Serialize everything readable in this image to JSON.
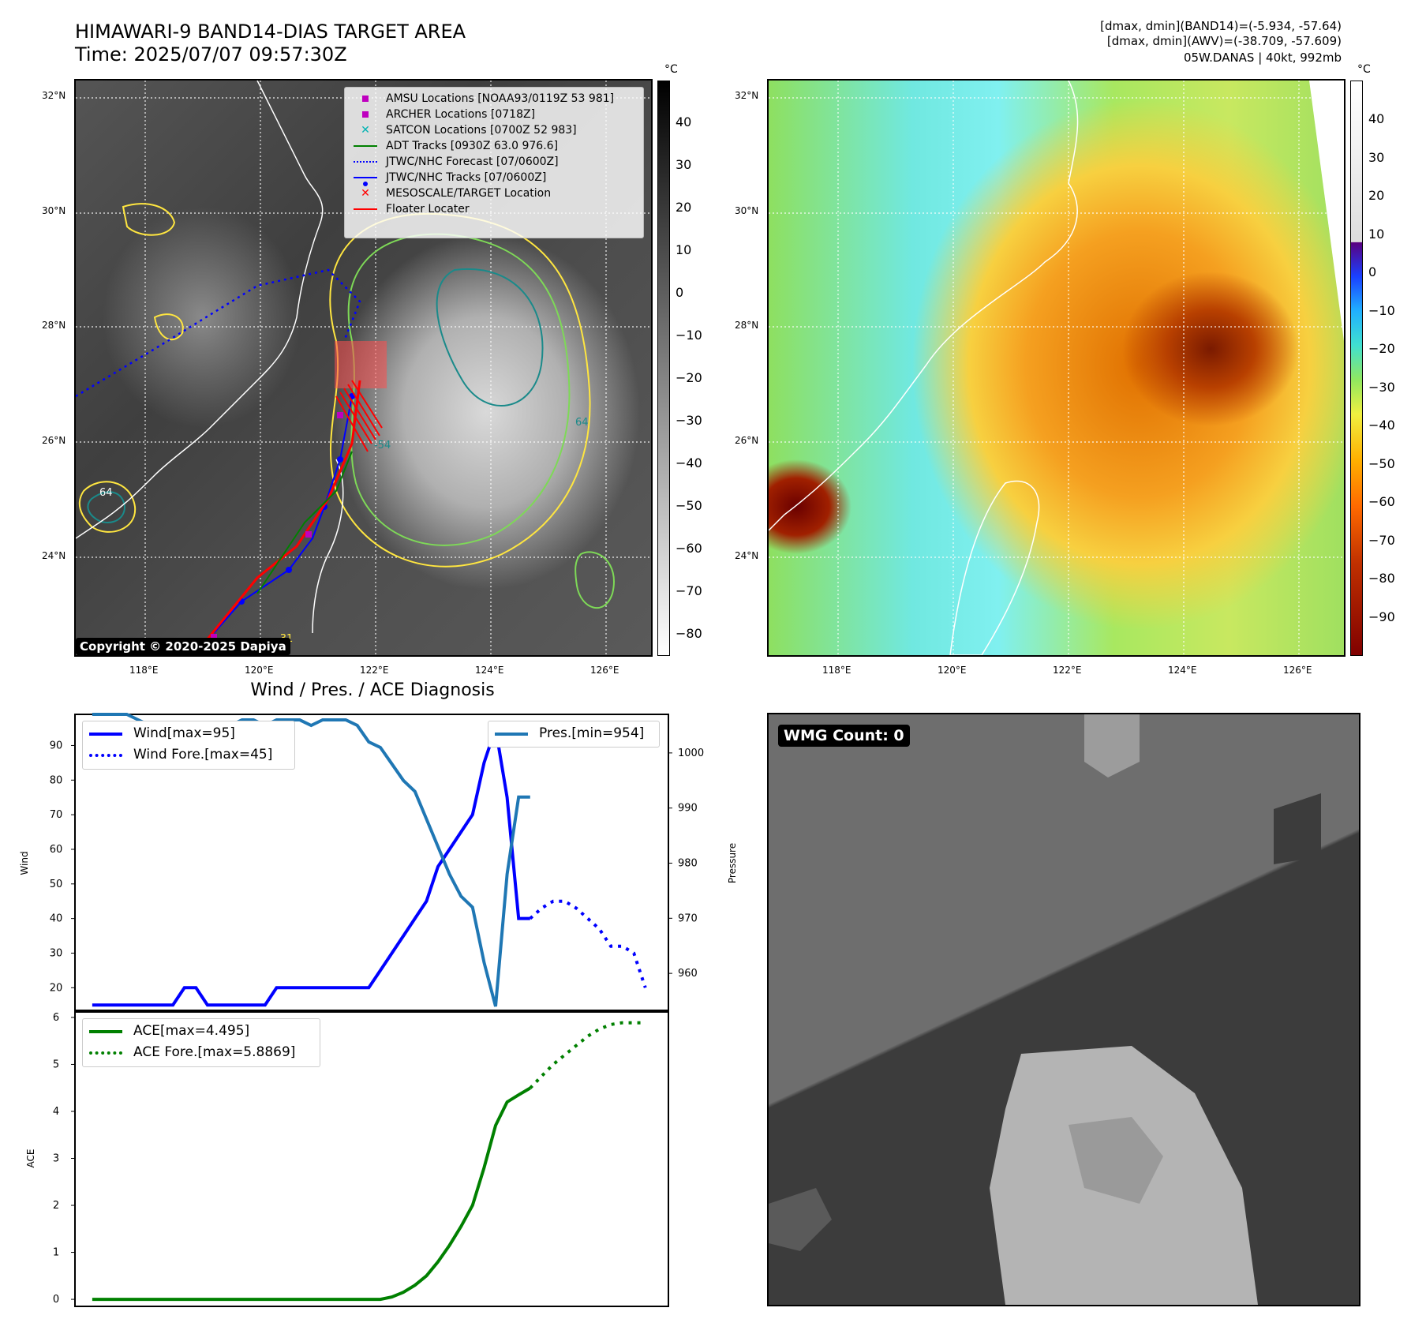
{
  "header": {
    "title_line1": "HIMAWARI-9 BAND14-DIAS TARGET AREA",
    "title_line2": "Time: 2025/07/07 09:57:30Z",
    "info_line1": "[dmax, dmin](BAND14)=(-5.934, -57.64)",
    "info_line2": "[dmax, dmin](AWV)=(-38.709, -57.609)",
    "info_line3": "05W.DANAS | 40kt, 992mb"
  },
  "maps": {
    "lat_labels": [
      "32°N",
      "30°N",
      "28°N",
      "26°N",
      "24°N"
    ],
    "lon_labels": [
      "118°E",
      "120°E",
      "122°E",
      "124°E",
      "126°E"
    ],
    "contour_labels": [
      "-31",
      "64",
      "-54",
      "64"
    ],
    "ir_colorbar": {
      "unit": "°C",
      "ticks": [
        "40",
        "30",
        "20",
        "10",
        "0",
        "−10",
        "−20",
        "−30",
        "−40",
        "−50",
        "−60",
        "−70",
        "−80"
      ]
    },
    "awv_colorbar": {
      "unit": "°C",
      "ticks": [
        "40",
        "30",
        "20",
        "10",
        "0",
        "−10",
        "−20",
        "−30",
        "−40",
        "−50",
        "−60",
        "−70",
        "−80",
        "−90"
      ]
    },
    "legend": [
      {
        "label": "AMSU Locations [NOAA93/0119Z 53 981]",
        "symbol": "square",
        "color": "#bf00bf"
      },
      {
        "label": "ARCHER Locations [0718Z]",
        "symbol": "square",
        "color": "#bf00bf"
      },
      {
        "label": "SATCON Locations [0700Z 52 983]",
        "symbol": "x",
        "color": "#00b3b3"
      },
      {
        "label": "ADT Tracks [0930Z 63.0 976.6]",
        "symbol": "line",
        "color": "#008000"
      },
      {
        "label": "JTWC/NHC Forecast [07/0600Z]",
        "symbol": "dotted",
        "color": "#0000ff"
      },
      {
        "label": "JTWC/NHC Tracks [07/0600Z]",
        "symbol": "line-dot",
        "color": "#0000ff"
      },
      {
        "label": "MESOSCALE/TARGET Location",
        "symbol": "x",
        "color": "#ff0000"
      },
      {
        "label": "Floater Locater",
        "symbol": "line",
        "color": "#ff0000"
      }
    ],
    "copyright": "Copyright © 2020-2025 Dapiya"
  },
  "wmg": {
    "label": "WMG Count: 0"
  },
  "chart_data": [
    {
      "type": "line",
      "title": "Wind / Pres. / ACE Diagnosis",
      "ylabel": "Wind",
      "ylabel_right": "Pressure",
      "ylim": [
        13,
        99
      ],
      "ylim_right": [
        953,
        1007
      ],
      "yticks": [
        "90",
        "80",
        "70",
        "60",
        "50",
        "40",
        "30",
        "20"
      ],
      "yticks_right": [
        "1000",
        "990",
        "980",
        "970",
        "960"
      ],
      "legend_left": [
        "Wind[max=95]",
        "Wind Fore.[max=45]"
      ],
      "legend_right": [
        "Pres.[min=954]"
      ],
      "series": [
        {
          "name": "Wind[max=95]",
          "axis": "left",
          "style": "solid",
          "color": "#0000ff",
          "x": [
            0,
            1,
            2,
            3,
            4,
            5,
            6,
            7,
            8,
            9,
            10,
            11,
            12,
            13,
            14,
            15,
            16,
            17,
            18,
            19,
            20,
            21,
            22,
            23,
            24,
            25,
            26,
            27,
            28,
            29,
            30,
            31,
            32,
            33,
            34,
            35,
            36,
            37,
            38
          ],
          "y": [
            15,
            15,
            15,
            15,
            15,
            15,
            15,
            15,
            20,
            20,
            15,
            15,
            15,
            15,
            15,
            15,
            20,
            20,
            20,
            20,
            20,
            20,
            20,
            20,
            20,
            25,
            30,
            35,
            40,
            45,
            55,
            60,
            65,
            70,
            85,
            95,
            75,
            40,
            40
          ]
        },
        {
          "name": "Wind Fore.[max=45]",
          "axis": "left",
          "style": "dotted",
          "color": "#0000ff",
          "x": [
            38,
            39,
            40,
            41,
            42,
            43,
            44,
            45,
            46,
            47,
            48
          ],
          "y": [
            40,
            43,
            45,
            45,
            43,
            40,
            37,
            32,
            32,
            30,
            20
          ]
        },
        {
          "name": "Pres.[min=954]",
          "axis": "right",
          "style": "solid",
          "color": "#1f77b4",
          "x": [
            0,
            1,
            2,
            3,
            4,
            5,
            6,
            7,
            8,
            9,
            10,
            11,
            12,
            13,
            14,
            15,
            16,
            17,
            18,
            19,
            20,
            21,
            22,
            23,
            24,
            25,
            26,
            27,
            28,
            29,
            30,
            31,
            32,
            33,
            34,
            35,
            36,
            37,
            38
          ],
          "y": [
            1007,
            1007,
            1007,
            1007,
            1006,
            1005,
            1005,
            1005,
            1005,
            1005,
            1005,
            1005,
            1005,
            1006,
            1006,
            1005,
            1006,
            1006,
            1006,
            1005,
            1006,
            1006,
            1006,
            1005,
            1002,
            1001,
            998,
            995,
            993,
            988,
            983,
            978,
            974,
            972,
            962,
            954,
            978,
            992,
            992
          ]
        }
      ]
    },
    {
      "type": "line",
      "ylabel": "ACE",
      "ylim": [
        -0.15,
        6.15
      ],
      "yticks": [
        "6",
        "5",
        "4",
        "3",
        "2",
        "1",
        "0"
      ],
      "legend": [
        "ACE[max=4.495]",
        "ACE Fore.[max=5.8869]"
      ],
      "series": [
        {
          "name": "ACE[max=4.495]",
          "style": "solid",
          "color": "#008000",
          "x": [
            0,
            5,
            10,
            15,
            20,
            25,
            26,
            27,
            28,
            29,
            30,
            31,
            32,
            33,
            34,
            35,
            36,
            37,
            38
          ],
          "y": [
            0,
            0,
            0,
            0,
            0,
            0,
            0.05,
            0.15,
            0.3,
            0.5,
            0.8,
            1.15,
            1.55,
            2.0,
            2.8,
            3.7,
            4.2,
            4.35,
            4.495
          ]
        },
        {
          "name": "ACE Fore.[max=5.8869]",
          "style": "dotted",
          "color": "#008000",
          "x": [
            38,
            39,
            40,
            41,
            42,
            43,
            44,
            45,
            46,
            47,
            48
          ],
          "y": [
            4.495,
            4.75,
            5.0,
            5.2,
            5.4,
            5.6,
            5.75,
            5.85,
            5.8869,
            5.8869,
            5.8869
          ]
        }
      ]
    }
  ]
}
